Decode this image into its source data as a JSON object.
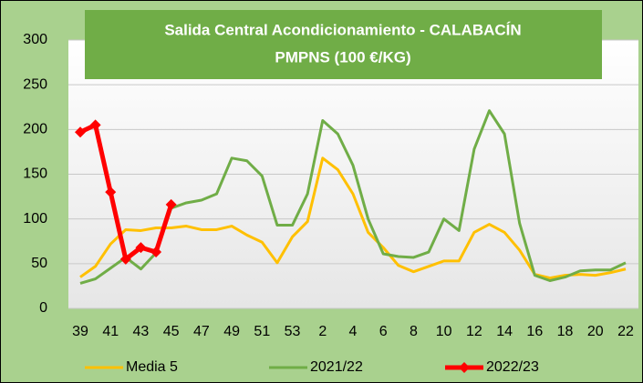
{
  "chart_data": {
    "type": "line",
    "title_lines": [
      "Salida Central Acondicionamiento - CALABACÍN",
      "PMPNS (100 €/KG)"
    ],
    "categories": [
      "39",
      null,
      "41",
      null,
      "43",
      null,
      "45",
      null,
      "47",
      null,
      "49",
      null,
      "51",
      null,
      "53",
      null,
      "2",
      null,
      "4",
      null,
      "6",
      null,
      "8",
      null,
      "10",
      null,
      "12",
      null,
      "14",
      null,
      "16",
      null,
      "18",
      null,
      "20",
      null,
      "22"
    ],
    "series": [
      {
        "name": "Media 5",
        "color": "#ffc000",
        "marker": false,
        "width": 3,
        "values": [
          35,
          47,
          72,
          88,
          87,
          90,
          90,
          92,
          88,
          88,
          92,
          82,
          74,
          51,
          80,
          97,
          168,
          155,
          128,
          85,
          68,
          48,
          41,
          47,
          53,
          53,
          85,
          94,
          85,
          65,
          38,
          34,
          37,
          38,
          37,
          40,
          44
        ]
      },
      {
        "name": "2021/22",
        "color": "#70ad47",
        "marker": false,
        "width": 3,
        "values": [
          28,
          33,
          45,
          57,
          44,
          62,
          112,
          118,
          121,
          128,
          168,
          165,
          148,
          93,
          93,
          128,
          210,
          195,
          160,
          100,
          61,
          58,
          57,
          63,
          100,
          87,
          178,
          221,
          195,
          95,
          37,
          31,
          35,
          42,
          43,
          43,
          51
        ]
      },
      {
        "name": "2022/23",
        "color": "#ff0000",
        "marker": true,
        "width": 5,
        "values": [
          197,
          205,
          130,
          55,
          68,
          63,
          116,
          null,
          null,
          null,
          null,
          null,
          null,
          null,
          null,
          null,
          null,
          null,
          null,
          null,
          null,
          null,
          null,
          null,
          null,
          null,
          null,
          null,
          null,
          null,
          null,
          null,
          null,
          null,
          null,
          null,
          null
        ]
      }
    ],
    "ylim": [
      0,
      300
    ],
    "yticks": [
      0,
      50,
      100,
      150,
      200,
      250,
      300
    ],
    "grid": true,
    "legend": "bottom"
  }
}
